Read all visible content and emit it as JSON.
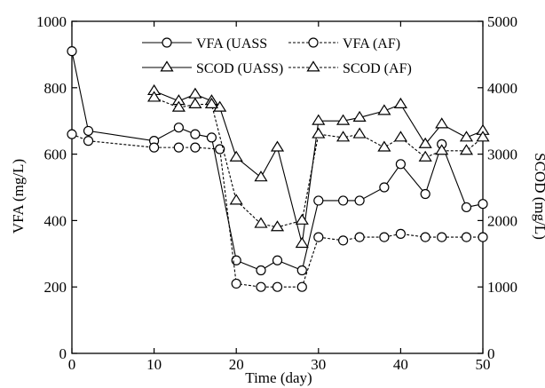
{
  "chart_data": {
    "type": "line",
    "xlabel": "Time (day)",
    "ylabel_left": "VFA (mg/L)",
    "ylabel_right": "SCOD (mg/L)",
    "xlim": [
      0,
      50
    ],
    "ylim_left": [
      0,
      1000
    ],
    "ylim_right": [
      0,
      5000
    ],
    "x_ticks": [
      0,
      10,
      20,
      30,
      40,
      50
    ],
    "y_ticks_left": [
      0,
      200,
      400,
      600,
      800,
      1000
    ],
    "y_ticks_right": [
      0,
      1000,
      2000,
      3000,
      4000,
      5000
    ],
    "grid": false,
    "legend_position": "top",
    "series": [
      {
        "name": "VFA (UASS",
        "axis": "left",
        "marker": "circle",
        "line_style": "solid",
        "x": [
          0,
          2,
          10,
          13,
          15,
          17,
          20,
          23,
          25,
          28,
          30,
          33,
          35,
          38,
          40,
          43,
          45,
          48,
          50
        ],
        "y": [
          910,
          670,
          640,
          680,
          660,
          650,
          280,
          250,
          280,
          250,
          460,
          460,
          460,
          500,
          570,
          480,
          630,
          440,
          450
        ]
      },
      {
        "name": "VFA (AF)",
        "axis": "left",
        "marker": "circle",
        "line_style": "dashed",
        "x": [
          0,
          2,
          10,
          13,
          15,
          18,
          20,
          23,
          25,
          28,
          30,
          33,
          35,
          38,
          40,
          43,
          45,
          48,
          50
        ],
        "y": [
          660,
          640,
          620,
          620,
          620,
          615,
          210,
          200,
          200,
          200,
          350,
          340,
          350,
          350,
          360,
          350,
          350,
          350,
          350
        ]
      },
      {
        "name": "SCOD (UASS)",
        "axis": "right",
        "marker": "triangle",
        "line_style": "solid",
        "x": [
          10,
          13,
          15,
          17,
          18,
          20,
          23,
          25,
          28,
          30,
          33,
          35,
          38,
          40,
          43,
          45,
          48,
          50
        ],
        "y": [
          3950,
          3800,
          3900,
          3800,
          3700,
          2950,
          2650,
          3100,
          1650,
          3500,
          3500,
          3550,
          3650,
          3750,
          3150,
          3450,
          3250,
          3350
        ]
      },
      {
        "name": "SCOD (AF)",
        "axis": "right",
        "marker": "triangle",
        "line_style": "dashed",
        "x": [
          10,
          13,
          15,
          17,
          20,
          23,
          25,
          28,
          30,
          33,
          35,
          38,
          40,
          43,
          45,
          48,
          50
        ],
        "y": [
          3850,
          3700,
          3750,
          3750,
          2300,
          1950,
          1900,
          2000,
          3300,
          3250,
          3300,
          3100,
          3250,
          2950,
          3050,
          3050,
          3250
        ]
      }
    ]
  }
}
